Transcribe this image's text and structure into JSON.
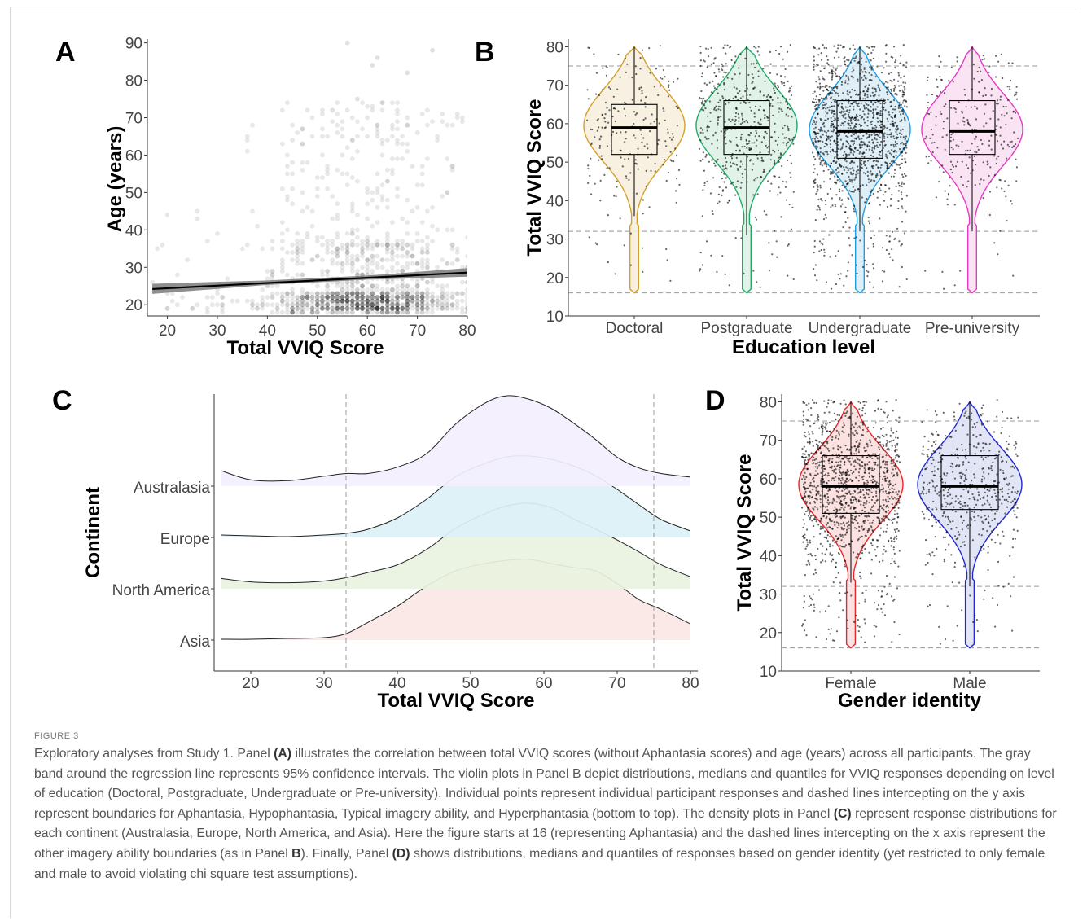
{
  "figure_label": "FIGURE 3",
  "caption": {
    "s1": "Exploratory analyses from Study 1. Panel ",
    "b1": "(A)",
    "s2": " illustrates the correlation between total VVIQ scores (without Aphantasia scores) and age (years) across all participants. The gray band around the regression line represents 95% confidence intervals. The violin plots in Panel B depict distributions, medians and quantiles for VVIQ responses depending on level of education (Doctoral, Postgraduate, Undergraduate or Pre-university). Individual points represent individual participant responses and dashed lines intercepting on the y axis represent boundaries for Aphantasia, Hypophantasia, Typical imagery ability, and Hyperphantasia (bottom to top). The density plots in Panel ",
    "b2": "(C)",
    "s3": " represent response distributions for each continent (Australasia, Europe, North America, and Asia). Here the figure starts at 16 (representing Aphantasia) and the dashed lines intercepting on the x axis represent the other imagery ability boundaries (as in Panel ",
    "b3": "B",
    "s4": "). Finally, Panel ",
    "b4": "(D)",
    "s5": " shows distributions, medians and quantiles of responses based on gender identity (yet restricted to only female and male to avoid violating chi square test assumptions)."
  },
  "chart_data": [
    {
      "panel": "A",
      "type": "scatter",
      "xlabel": "Total VVIQ Score",
      "ylabel": "Age (years)",
      "x_ticks": [
        "20",
        "30",
        "40",
        "50",
        "60",
        "70",
        "80"
      ],
      "y_ticks": [
        "20",
        "30",
        "40",
        "50",
        "60",
        "70",
        "80",
        "90"
      ],
      "xlim": [
        16,
        80
      ],
      "ylim": [
        17,
        91
      ],
      "regression_line": {
        "x": [
          17,
          80
        ],
        "y": [
          24.2,
          28.6
        ]
      },
      "confidence_band": {
        "x": [
          17,
          40,
          60,
          80
        ],
        "lower": [
          22.9,
          25.3,
          26.7,
          27.5
        ],
        "upper": [
          25.6,
          26.5,
          27.8,
          29.8
        ]
      },
      "point_color": "#000000",
      "band_color": "#7a7a7a"
    },
    {
      "panel": "B",
      "type": "violin",
      "xlabel": "Education level",
      "ylabel": "Total VVIQ Score",
      "categories": [
        "Doctoral",
        "Postgraduate",
        "Undergraduate",
        "Pre-university"
      ],
      "y_ticks": [
        "10",
        "20",
        "30",
        "40",
        "50",
        "60",
        "70",
        "80"
      ],
      "ylim": [
        10,
        82
      ],
      "reference_lines": [
        16,
        32,
        75
      ],
      "series": [
        {
          "category": "Doctoral",
          "color": "#d4a12a",
          "fill": "#f7eddb",
          "min": 36,
          "q1": 52,
          "median": 59,
          "q3": 65,
          "max": 80
        },
        {
          "category": "Postgraduate",
          "color": "#1fab66",
          "fill": "#dcf1e4",
          "min": 31,
          "q1": 52,
          "median": 59,
          "q3": 66,
          "max": 80
        },
        {
          "category": "Undergraduate",
          "color": "#1f9ee6",
          "fill": "#d9ecf7",
          "min": 32,
          "q1": 51,
          "median": 58,
          "q3": 66,
          "max": 80
        },
        {
          "category": "Pre-university",
          "color": "#e639c4",
          "fill": "#f9dff2",
          "min": 32,
          "q1": 52,
          "median": 58,
          "q3": 66,
          "max": 80
        }
      ]
    },
    {
      "panel": "C",
      "type": "area",
      "xlabel": "Total VVIQ Score",
      "ylabel": "Continent",
      "x_ticks": [
        "20",
        "30",
        "40",
        "50",
        "60",
        "70",
        "80"
      ],
      "xlim": [
        15,
        81
      ],
      "categories": [
        "Australasia",
        "Europe",
        "North America",
        "Asia"
      ],
      "reference_lines": [
        33,
        75
      ],
      "x": [
        16,
        20,
        25,
        30,
        33,
        36,
        40,
        44,
        48,
        52,
        55,
        58,
        61,
        64,
        67,
        70,
        73,
        76,
        80
      ],
      "series": [
        {
          "name": "Australasia",
          "fill": "#f3effe",
          "values": [
            0.17,
            0.07,
            0.06,
            0.11,
            0.14,
            0.14,
            0.21,
            0.36,
            0.69,
            0.92,
            1.0,
            0.96,
            0.86,
            0.7,
            0.52,
            0.32,
            0.2,
            0.14,
            0.1
          ]
        },
        {
          "name": "Europe",
          "fill": "#dcf1f7",
          "values": [
            0.03,
            0.02,
            0.01,
            0.03,
            0.05,
            0.1,
            0.24,
            0.47,
            0.75,
            0.91,
            0.99,
            1.0,
            0.96,
            0.88,
            0.76,
            0.59,
            0.4,
            0.22,
            0.08
          ]
        },
        {
          "name": "North America",
          "fill": "#e9f2e0",
          "values": [
            0.12,
            0.08,
            0.07,
            0.09,
            0.13,
            0.19,
            0.28,
            0.46,
            0.71,
            0.88,
            0.97,
            1.0,
            0.95,
            0.82,
            0.7,
            0.57,
            0.43,
            0.28,
            0.14
          ]
        },
        {
          "name": "Asia",
          "fill": "#fbe7e5",
          "values": [
            0.01,
            0.01,
            0.02,
            0.03,
            0.08,
            0.22,
            0.42,
            0.67,
            0.86,
            0.95,
            0.99,
            1.0,
            0.95,
            0.9,
            0.86,
            0.7,
            0.5,
            0.38,
            0.2
          ]
        }
      ]
    },
    {
      "panel": "D",
      "type": "violin",
      "xlabel": "Gender identity",
      "ylabel": "Total VVIQ Score",
      "categories": [
        "Female",
        "Male"
      ],
      "y_ticks": [
        "10",
        "20",
        "30",
        "40",
        "50",
        "60",
        "70",
        "80"
      ],
      "ylim": [
        10,
        82
      ],
      "reference_lines": [
        16,
        32,
        75
      ],
      "series": [
        {
          "category": "Female",
          "color": "#e8262a",
          "fill": "#fbdcdc",
          "min": 33,
          "q1": 51,
          "median": 58,
          "q3": 66,
          "max": 80
        },
        {
          "category": "Male",
          "color": "#2129d3",
          "fill": "#dde0f5",
          "min": 32,
          "q1": 52,
          "median": 58,
          "q3": 66,
          "max": 80
        }
      ]
    }
  ]
}
